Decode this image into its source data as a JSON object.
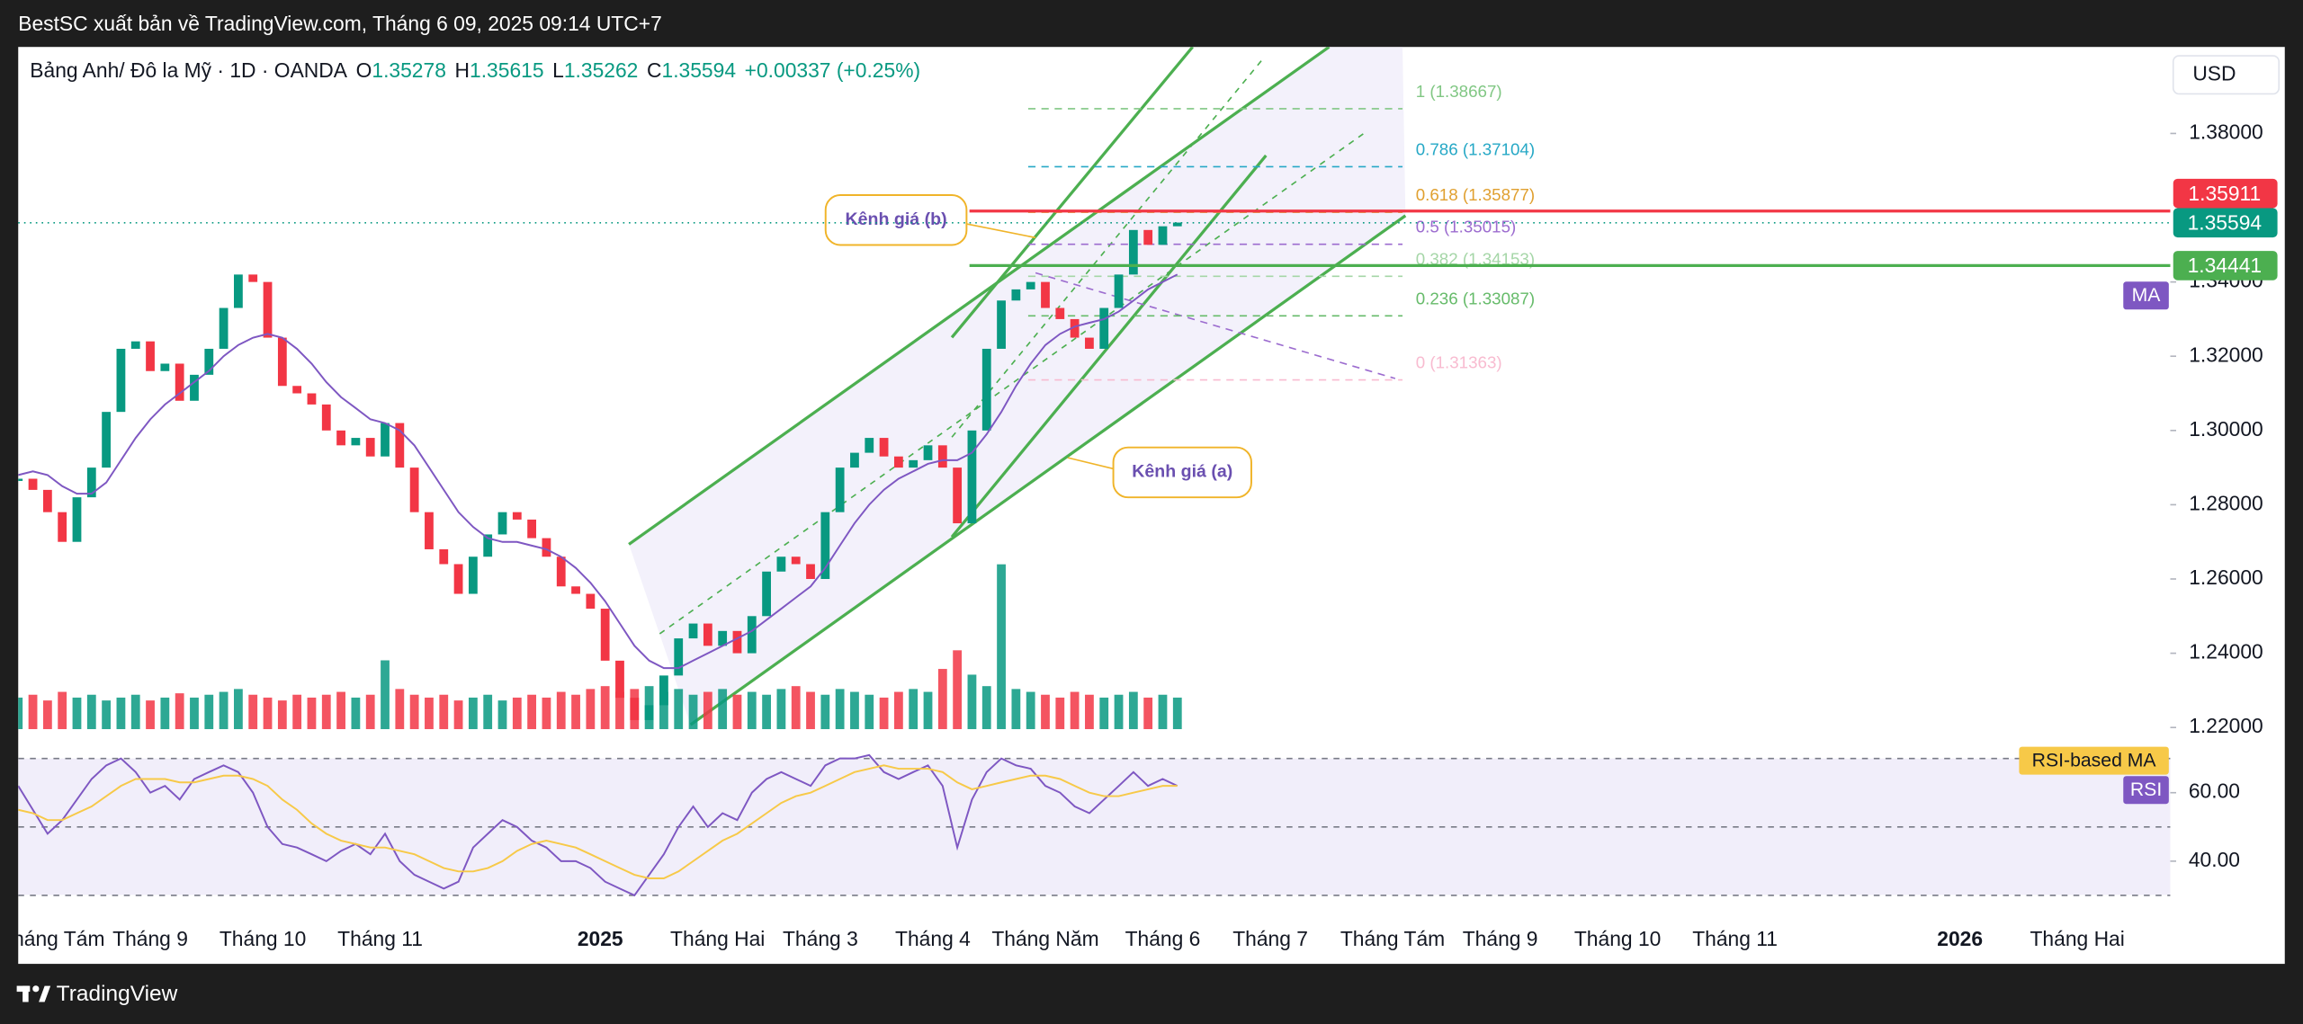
{
  "header": {
    "publisher": "BestSC xuất bản về TradingView.com, Tháng 6 09, 2025 09:14 UTC+7",
    "symbol": "Bảng Anh/ Đô la Mỹ · 1D · OANDA",
    "ohlc": [
      {
        "key": "O",
        "value": "1.35278"
      },
      {
        "key": "H",
        "value": "1.35615"
      },
      {
        "key": "L",
        "value": "1.35262"
      },
      {
        "key": "C",
        "value": "1.35594"
      }
    ],
    "change": "+0.00337 (+0.25%)",
    "brand": "TradingView"
  },
  "chart_data": [
    {
      "type": "candlestick",
      "currency": "USD",
      "up_color": "#089981",
      "down_color": "#f23645",
      "x": [
        0,
        3,
        6,
        9,
        12,
        15,
        18,
        21,
        24,
        27,
        30,
        33,
        36,
        39,
        42,
        45,
        48,
        51,
        54,
        57,
        60,
        63,
        66,
        69,
        72,
        75,
        78,
        81,
        84,
        87,
        90,
        93,
        96,
        99,
        102,
        105,
        108,
        111,
        114,
        117,
        120,
        123,
        126,
        129,
        132,
        135,
        138,
        141,
        144,
        147,
        150,
        153,
        156,
        159,
        162,
        165,
        168,
        171,
        174,
        177,
        180,
        183,
        186,
        189,
        192,
        195,
        198,
        201,
        204,
        207,
        210,
        213,
        216,
        219,
        222,
        225,
        228,
        231,
        234,
        237
      ],
      "close": [
        1.287,
        1.284,
        1.278,
        1.27,
        1.282,
        1.29,
        1.305,
        1.322,
        1.324,
        1.316,
        1.318,
        1.308,
        1.315,
        1.322,
        1.333,
        1.342,
        1.34,
        1.325,
        1.312,
        1.31,
        1.307,
        1.3,
        1.296,
        1.298,
        1.293,
        1.302,
        1.29,
        1.278,
        1.268,
        1.264,
        1.256,
        1.266,
        1.272,
        1.278,
        1.276,
        1.271,
        1.266,
        1.258,
        1.256,
        1.252,
        1.238,
        1.228,
        1.222,
        1.226,
        1.234,
        1.244,
        1.248,
        1.242,
        1.246,
        1.24,
        1.25,
        1.262,
        1.266,
        1.264,
        1.26,
        1.278,
        1.29,
        1.294,
        1.298,
        1.293,
        1.29,
        1.292,
        1.296,
        1.29,
        1.275,
        1.3,
        1.322,
        1.335,
        1.338,
        1.34,
        1.333,
        1.33,
        1.325,
        1.322,
        1.333,
        1.342,
        1.354,
        1.35,
        1.355,
        1.356
      ],
      "series": [
        {
          "name": "MA",
          "color": "#7e57c2",
          "values": [
            1.288,
            1.289,
            1.288,
            1.285,
            1.283,
            1.283,
            1.286,
            1.292,
            1.298,
            1.303,
            1.307,
            1.31,
            1.313,
            1.316,
            1.32,
            1.323,
            1.325,
            1.326,
            1.325,
            1.322,
            1.318,
            1.313,
            1.309,
            1.306,
            1.303,
            1.302,
            1.3,
            1.296,
            1.29,
            1.284,
            1.278,
            1.274,
            1.271,
            1.27,
            1.27,
            1.269,
            1.268,
            1.266,
            1.263,
            1.259,
            1.254,
            1.248,
            1.242,
            1.238,
            1.236,
            1.236,
            1.238,
            1.24,
            1.242,
            1.244,
            1.246,
            1.249,
            1.252,
            1.255,
            1.258,
            1.263,
            1.269,
            1.275,
            1.28,
            1.284,
            1.287,
            1.289,
            1.291,
            1.292,
            1.292,
            1.294,
            1.299,
            1.305,
            1.312,
            1.318,
            1.323,
            1.326,
            1.328,
            1.329,
            1.33,
            1.332,
            1.335,
            1.338,
            1.34,
            1.342
          ]
        }
      ],
      "volume": {
        "ylim": [
          0,
          130
        ],
        "values": [
          22,
          24,
          20,
          26,
          22,
          24,
          20,
          22,
          24,
          20,
          22,
          25,
          22,
          24,
          26,
          28,
          24,
          22,
          20,
          24,
          22,
          24,
          26,
          22,
          24,
          48,
          28,
          24,
          22,
          24,
          20,
          22,
          24,
          20,
          22,
          24,
          22,
          26,
          24,
          28,
          30,
          26,
          28,
          30,
          26,
          28,
          24,
          26,
          28,
          24,
          26,
          24,
          28,
          30,
          26,
          24,
          28,
          26,
          24,
          22,
          26,
          28,
          26,
          42,
          55,
          38,
          30,
          115,
          28,
          26,
          24,
          22,
          26,
          24,
          22,
          24,
          26,
          22,
          24,
          22
        ]
      },
      "xlim": [
        0,
        440
      ],
      "xticks": [
        {
          "value": 7,
          "label": "Tháng Tám"
        },
        {
          "value": 27,
          "label": "Tháng 9"
        },
        {
          "value": 50,
          "label": "Tháng 10"
        },
        {
          "value": 74,
          "label": "Tháng 11"
        },
        {
          "value": 119,
          "label": "2025"
        },
        {
          "value": 143,
          "label": "Tháng Hai"
        },
        {
          "value": 164,
          "label": "Tháng 3"
        },
        {
          "value": 187,
          "label": "Tháng 4"
        },
        {
          "value": 210,
          "label": "Tháng Năm"
        },
        {
          "value": 234,
          "label": "Tháng 6"
        },
        {
          "value": 256,
          "label": "Tháng 7"
        },
        {
          "value": 281,
          "label": "Tháng Tám"
        },
        {
          "value": 303,
          "label": "Tháng 9"
        },
        {
          "value": 327,
          "label": "Tháng 10"
        },
        {
          "value": 351,
          "label": "Tháng 11"
        },
        {
          "value": 397,
          "label": "2026"
        },
        {
          "value": 421,
          "label": "Tháng Hai"
        }
      ],
      "ylim": [
        1.2164,
        1.4033
      ],
      "yticks": [
        {
          "value": 1.38,
          "label": "1.38000"
        },
        {
          "value": 1.34,
          "label": "1.34000"
        },
        {
          "value": 1.32,
          "label": "1.32000"
        },
        {
          "value": 1.3,
          "label": "1.30000"
        },
        {
          "value": 1.28,
          "label": "1.28000"
        },
        {
          "value": 1.26,
          "label": "1.26000"
        },
        {
          "value": 1.24,
          "label": "1.24000"
        },
        {
          "value": 1.22,
          "label": "1.22000"
        }
      ],
      "price_lines": [
        {
          "value": 1.35911,
          "color": "#f23645"
        },
        {
          "value": 1.35594,
          "color": "#089981"
        },
        {
          "value": 1.34441,
          "color": "#4caf50"
        }
      ],
      "fib_levels": [
        {
          "value": 1.38667,
          "label": "1 (1.38667)",
          "color": "#81c784"
        },
        {
          "value": 1.37104,
          "label": "0.786 (1.37104)",
          "color": "#26a8c6"
        },
        {
          "value": 1.35877,
          "label": "0.618 (1.35877)",
          "color": "#e0a030"
        },
        {
          "value": 1.35015,
          "label": "0.5 (1.35015)",
          "color": "#9c6ccf"
        },
        {
          "value": 1.34153,
          "label": "0.382 (1.34153)",
          "color": "#a5d6a7"
        },
        {
          "value": 1.33087,
          "label": "0.236 (1.33087)",
          "color": "#66bb6a"
        },
        {
          "value": 1.31363,
          "label": "0 (1.31363)",
          "color": "#f8bbd0"
        }
      ],
      "annotations": [
        "Kênh giá (b)",
        "Kênh giá (a)"
      ]
    },
    {
      "type": "line",
      "series": [
        {
          "name": "RSI",
          "color": "#7e57c2",
          "values": [
            62,
            55,
            48,
            52,
            58,
            64,
            68,
            70,
            66,
            60,
            62,
            58,
            64,
            66,
            68,
            66,
            60,
            50,
            45,
            44,
            42,
            40,
            43,
            45,
            42,
            48,
            40,
            36,
            34,
            32,
            34,
            44,
            48,
            52,
            50,
            46,
            44,
            40,
            40,
            38,
            34,
            32,
            30,
            36,
            42,
            50,
            56,
            50,
            54,
            52,
            60,
            64,
            66,
            64,
            62,
            68,
            70,
            70,
            71,
            66,
            64,
            66,
            68,
            62,
            44,
            58,
            66,
            70,
            68,
            67,
            62,
            60,
            56,
            54,
            58,
            62,
            66,
            62,
            64,
            62
          ]
        },
        {
          "name": "RSI-based MA",
          "color": "#f7c948",
          "values": [
            55,
            54,
            52,
            52,
            54,
            56,
            59,
            62,
            64,
            64,
            64,
            63,
            63,
            64,
            65,
            65,
            64,
            62,
            58,
            55,
            51,
            48,
            46,
            45,
            44,
            44,
            43,
            42,
            40,
            38,
            37,
            37,
            38,
            40,
            43,
            45,
            46,
            45,
            44,
            42,
            40,
            38,
            36,
            35,
            35,
            37,
            40,
            43,
            46,
            48,
            51,
            54,
            57,
            59,
            60,
            62,
            64,
            66,
            67,
            68,
            67,
            67,
            67,
            66,
            63,
            61,
            62,
            63,
            64,
            65,
            65,
            64,
            62,
            60,
            59,
            59,
            60,
            61,
            62,
            62
          ]
        }
      ],
      "ylim": [
        28,
        73
      ],
      "yticks": [
        {
          "value": 60,
          "label": "60.00"
        },
        {
          "value": 40,
          "label": "40.00"
        }
      ],
      "bands": [
        70,
        50,
        30
      ]
    }
  ]
}
